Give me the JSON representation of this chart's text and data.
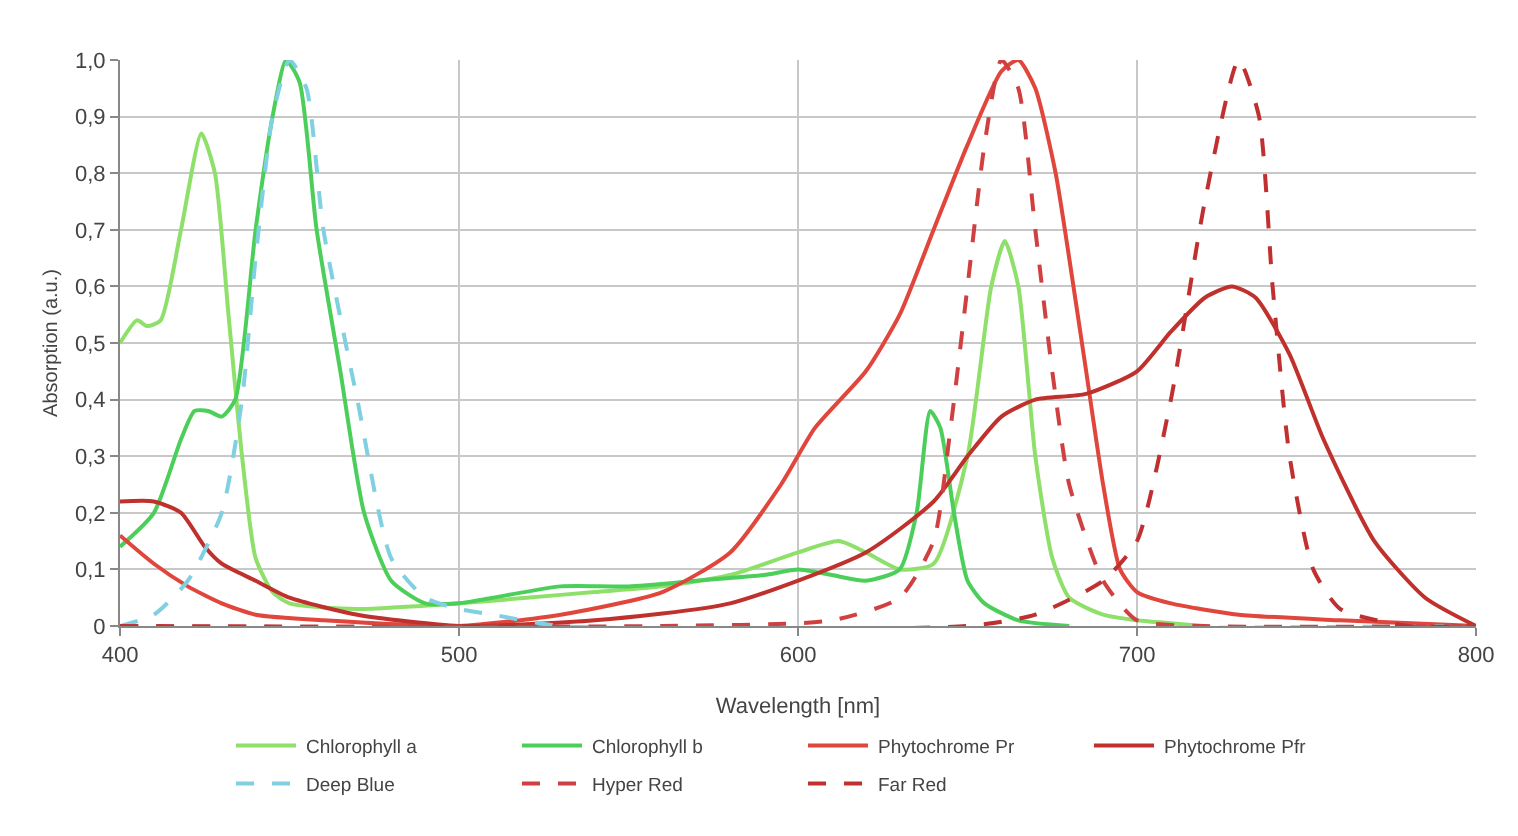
{
  "chart_data": {
    "type": "line",
    "xlabel": "Wavelength [nm]",
    "ylabel": "Absorption (a.u.)",
    "xlim": [
      400,
      800
    ],
    "xticks": [
      400,
      500,
      600,
      700,
      800
    ],
    "ylim": [
      0,
      1
    ],
    "yticks": [
      0,
      {
        "value": 0.1,
        "label": "0,1"
      },
      {
        "value": 0.2,
        "label": "0,2"
      },
      {
        "value": 0.3,
        "label": "0,3"
      },
      {
        "value": 0.4,
        "label": "0,4"
      },
      {
        "value": 0.5,
        "label": "0,5"
      },
      {
        "value": 0.6,
        "label": "0,6"
      },
      {
        "value": 0.7,
        "label": "0,7"
      },
      {
        "value": 0.8,
        "label": "0,8"
      },
      {
        "value": 0.9,
        "label": "0,9"
      },
      {
        "value": 1,
        "label": "1,0"
      }
    ],
    "grid": true,
    "legend": "bottom",
    "marker": "none",
    "series": [
      {
        "name": "Chlorophyll a",
        "color": "#8ee06a",
        "line_style": "solid",
        "x": [
          400,
          405,
          408,
          412,
          418,
          424,
          428,
          432,
          436,
          440,
          445,
          450,
          470,
          500,
          520,
          540,
          560,
          580,
          600,
          612,
          620,
          630,
          640,
          650,
          657,
          661,
          665,
          670,
          675,
          680,
          690,
          700,
          720
        ],
        "values": [
          0.5,
          0.54,
          0.53,
          0.54,
          0.7,
          0.87,
          0.8,
          0.55,
          0.3,
          0.12,
          0.06,
          0.04,
          0.03,
          0.04,
          0.05,
          0.06,
          0.07,
          0.09,
          0.13,
          0.15,
          0.13,
          0.1,
          0.11,
          0.3,
          0.6,
          0.68,
          0.6,
          0.3,
          0.12,
          0.05,
          0.02,
          0.01,
          0
        ]
      },
      {
        "name": "Chlorophyll b",
        "color": "#4ccf5a",
        "line_style": "solid",
        "x": [
          400,
          410,
          418,
          422,
          426,
          430,
          434,
          440,
          445,
          449,
          453,
          458,
          465,
          472,
          480,
          490,
          500,
          510,
          530,
          550,
          570,
          590,
          600,
          610,
          620,
          630,
          635,
          639,
          642,
          646,
          650,
          655,
          665,
          680
        ],
        "values": [
          0.14,
          0.2,
          0.33,
          0.38,
          0.38,
          0.37,
          0.4,
          0.7,
          0.9,
          1.0,
          0.96,
          0.7,
          0.45,
          0.2,
          0.08,
          0.04,
          0.04,
          0.05,
          0.07,
          0.07,
          0.08,
          0.09,
          0.1,
          0.09,
          0.08,
          0.1,
          0.2,
          0.38,
          0.35,
          0.2,
          0.08,
          0.04,
          0.01,
          0
        ]
      },
      {
        "name": "Phytochrome Pr",
        "color": "#e0463c",
        "line_style": "solid",
        "x": [
          400,
          410,
          420,
          430,
          440,
          460,
          500,
          530,
          560,
          580,
          595,
          605,
          620,
          630,
          640,
          650,
          660,
          665,
          670,
          676,
          680,
          685,
          690,
          695,
          700,
          710,
          730,
          760,
          800
        ],
        "values": [
          0.16,
          0.11,
          0.07,
          0.04,
          0.02,
          0.01,
          0.0,
          0.02,
          0.06,
          0.13,
          0.25,
          0.35,
          0.45,
          0.55,
          0.7,
          0.85,
          0.98,
          1.0,
          0.95,
          0.8,
          0.65,
          0.45,
          0.25,
          0.1,
          0.06,
          0.04,
          0.02,
          0.01,
          0
        ]
      },
      {
        "name": "Phytochrome Pfr",
        "color": "#c0302c",
        "line_style": "solid",
        "x": [
          400,
          410,
          418,
          425,
          430,
          440,
          450,
          470,
          500,
          540,
          580,
          620,
          640,
          650,
          660,
          670,
          685,
          700,
          710,
          720,
          728,
          735,
          745,
          755,
          770,
          785,
          800
        ],
        "values": [
          0.22,
          0.22,
          0.2,
          0.14,
          0.11,
          0.08,
          0.05,
          0.02,
          0.0,
          0.01,
          0.04,
          0.13,
          0.22,
          0.3,
          0.37,
          0.4,
          0.41,
          0.45,
          0.52,
          0.58,
          0.6,
          0.58,
          0.48,
          0.33,
          0.15,
          0.05,
          0
        ]
      },
      {
        "name": "Deep Blue",
        "color": "#7fd0e0",
        "line_style": "dashed",
        "x": [
          400,
          410,
          420,
          430,
          436,
          440,
          445,
          450,
          455,
          460,
          470,
          480,
          490,
          500,
          510,
          530,
          800
        ],
        "values": [
          0,
          0.02,
          0.08,
          0.2,
          0.4,
          0.65,
          0.9,
          1.0,
          0.95,
          0.7,
          0.4,
          0.12,
          0.05,
          0.03,
          0.02,
          0,
          0
        ]
      },
      {
        "name": "Hyper Red",
        "color": "#d04040",
        "line_style": "dashed",
        "x": [
          400,
          560,
          610,
          630,
          640,
          645,
          650,
          655,
          660,
          665,
          670,
          675,
          680,
          690,
          700,
          720,
          800
        ],
        "values": [
          0,
          0,
          0.01,
          0.05,
          0.15,
          0.35,
          0.6,
          0.85,
          1.0,
          0.95,
          0.7,
          0.45,
          0.25,
          0.08,
          0.01,
          0,
          0
        ]
      },
      {
        "name": "Far Red",
        "color": "#c03030",
        "line_style": "dashed",
        "x": [
          400,
          650,
          670,
          690,
          700,
          710,
          720,
          730,
          736,
          740,
          745,
          752,
          760,
          780,
          800
        ],
        "values": [
          0,
          0,
          0.02,
          0.08,
          0.15,
          0.4,
          0.75,
          1.0,
          0.9,
          0.6,
          0.3,
          0.1,
          0.03,
          0,
          0
        ]
      }
    ]
  }
}
